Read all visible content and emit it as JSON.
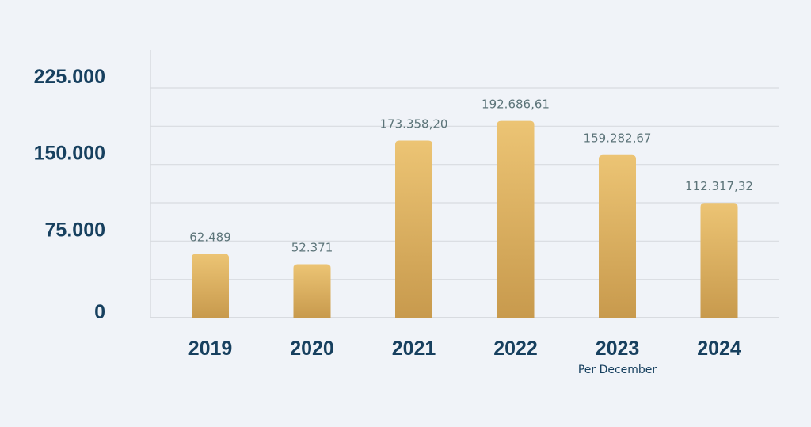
{
  "chart_data": {
    "type": "bar",
    "categories": [
      "2019",
      "2020",
      "2021",
      "2022",
      "2023",
      "2024"
    ],
    "values": [
      62489,
      52371,
      173358.2,
      192686.61,
      159282.67,
      112317.32
    ],
    "data_labels": [
      "62.489",
      "52.371",
      "173.358,20",
      "192.686,61",
      "159.282,67",
      "112.317,32"
    ],
    "category_notes": [
      "",
      "",
      "",
      "",
      "Per December",
      ""
    ],
    "yticks": [
      0,
      75000,
      150000,
      225000
    ],
    "ytick_labels": [
      "0",
      "75.000",
      "150.000",
      "225.000"
    ],
    "ylim": [
      0,
      225000
    ],
    "grid": true,
    "title": "",
    "xlabel": "",
    "ylabel": "",
    "colors": {
      "bar_top": "#ecc474",
      "bar_bottom": "#c89a4d",
      "axis_text": "#17405f",
      "label_text": "#5c7479",
      "grid": "#d8dbe0",
      "background": "#f0f3f8"
    }
  }
}
